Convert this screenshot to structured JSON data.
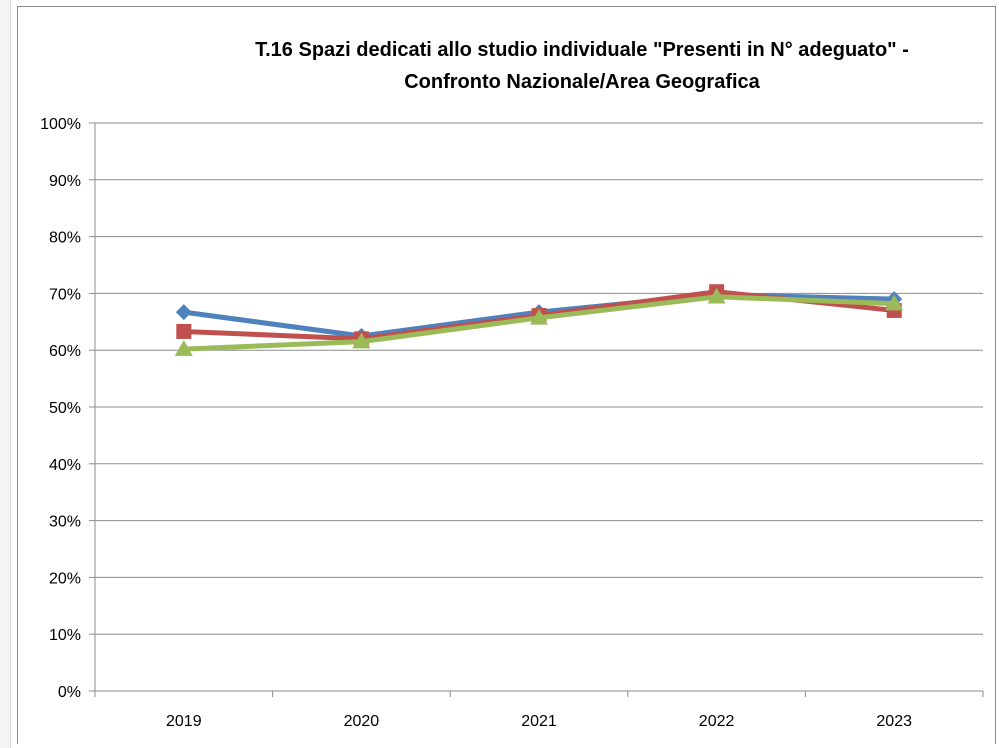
{
  "chart_data": {
    "type": "line",
    "title_lines": [
      "T.16 Spazi dedicati allo studio individuale \"Presenti in N° adeguato\" -",
      "Confronto Nazionale/Area Geografica"
    ],
    "xlabel": "",
    "ylabel": "",
    "categories": [
      "2019",
      "2020",
      "2021",
      "2022",
      "2023"
    ],
    "ylim": [
      0,
      1
    ],
    "y_ticks": [
      0,
      0.1,
      0.2,
      0.3,
      0.4,
      0.5,
      0.6,
      0.7,
      0.8,
      0.9,
      1.0
    ],
    "y_tick_labels": [
      "0%",
      "10%",
      "20%",
      "30%",
      "40%",
      "50%",
      "60%",
      "70%",
      "80%",
      "90%",
      "100%"
    ],
    "grid": "horizontal",
    "legend": "none",
    "series": [
      {
        "marker": "diamond",
        "color": "#4f81bd",
        "values": [
          0.667,
          0.625,
          0.667,
          0.698,
          0.69
        ]
      },
      {
        "marker": "square",
        "color": "#c0504d",
        "values": [
          0.633,
          0.62,
          0.661,
          0.703,
          0.67
        ]
      },
      {
        "marker": "triangle",
        "color": "#9bbb59",
        "values": [
          0.602,
          0.615,
          0.657,
          0.694,
          0.682
        ]
      }
    ]
  }
}
